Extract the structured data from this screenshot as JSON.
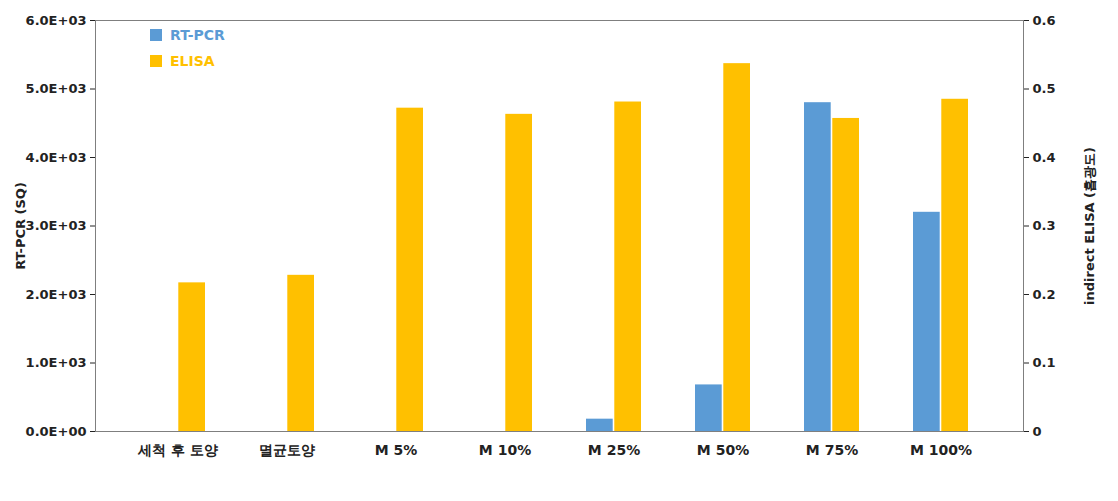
{
  "chart_data": {
    "type": "bar",
    "categories": [
      "세척 후 토양",
      "멸균토양",
      "M 5%",
      "M 10%",
      "M 25%",
      "M 50%",
      "M 75%",
      "M 100%"
    ],
    "series": [
      {
        "name": "RT-PCR",
        "color": "#5B9BD5",
        "values": [
          0,
          0,
          0,
          0,
          180,
          680,
          4800,
          3200
        ]
      },
      {
        "name": "ELISA",
        "color": "#FFC000",
        "axis": "y2",
        "values": [
          0.217,
          0.228,
          0.472,
          0.463,
          0.481,
          0.537,
          0.457,
          0.485
        ]
      }
    ],
    "y_label": "RT-PCR (SQ)",
    "y2_label": "indirect ELISA (흡광도)",
    "ylim": [
      0,
      6000
    ],
    "yticks": [
      {
        "value": 0,
        "label": "0.0E+00"
      },
      {
        "value": 1000,
        "label": "1.0E+03"
      },
      {
        "value": 2000,
        "label": "2.0E+03"
      },
      {
        "value": 3000,
        "label": "3.0E+03"
      },
      {
        "value": 4000,
        "label": "4.0E+03"
      },
      {
        "value": 5000,
        "label": "5.0E+03"
      },
      {
        "value": 6000,
        "label": "6.0E+03"
      }
    ],
    "y2lim": [
      0,
      0.6
    ],
    "y2ticks": [
      0,
      0.1,
      0.2,
      0.3,
      0.4,
      0.5,
      0.6
    ],
    "grid": false,
    "legend": "top-left"
  }
}
